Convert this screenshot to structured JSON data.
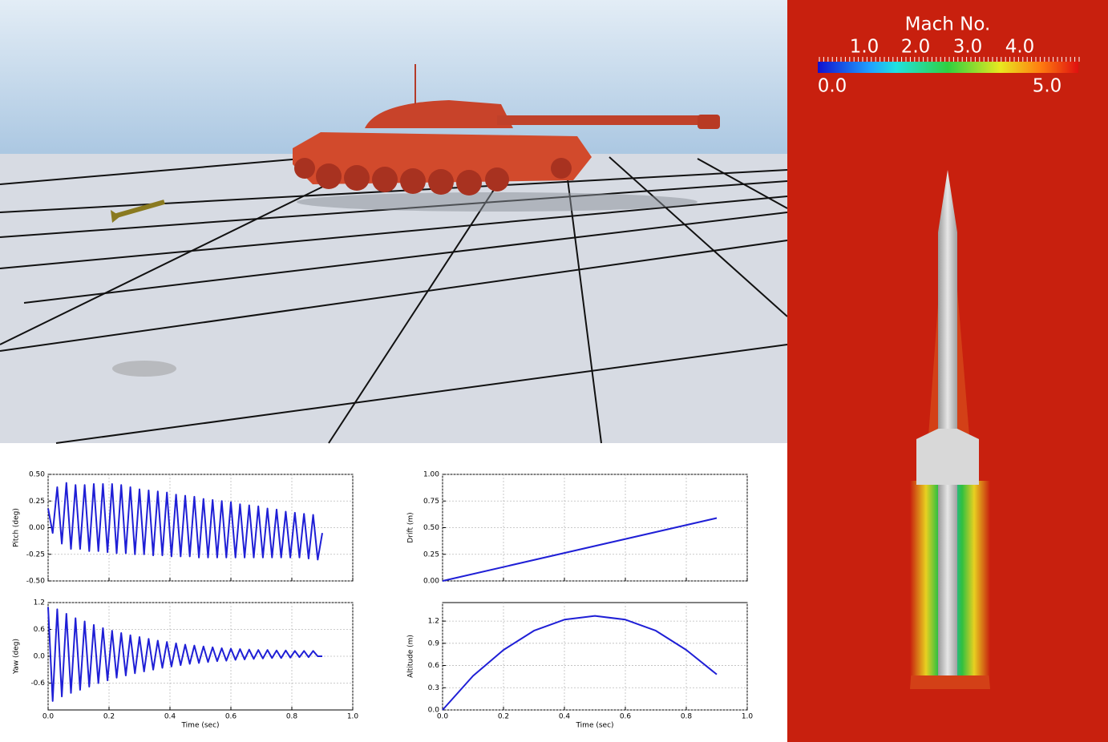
{
  "colorbar": {
    "title": "Mach No.",
    "upper_labels": [
      "1.0",
      "2.0",
      "3.0",
      "4.0"
    ],
    "lower_labels": [
      "0.0",
      "5.0"
    ]
  },
  "chart_data": [
    {
      "type": "line",
      "ylabel": "Pitch (deg)",
      "color": "#1f1fd6",
      "grid": true,
      "x": [
        0,
        0.015,
        0.03,
        0.045,
        0.06,
        0.075,
        0.09,
        0.105,
        0.12,
        0.135,
        0.15,
        0.165,
        0.18,
        0.195,
        0.21,
        0.225,
        0.24,
        0.255,
        0.27,
        0.285,
        0.3,
        0.315,
        0.33,
        0.345,
        0.36,
        0.375,
        0.39,
        0.405,
        0.42,
        0.435,
        0.45,
        0.465,
        0.48,
        0.495,
        0.51,
        0.525,
        0.54,
        0.555,
        0.57,
        0.585,
        0.6,
        0.615,
        0.63,
        0.645,
        0.66,
        0.675,
        0.69,
        0.705,
        0.72,
        0.735,
        0.75,
        0.765,
        0.78,
        0.795,
        0.81,
        0.825,
        0.84,
        0.855,
        0.87,
        0.885,
        0.9
      ],
      "values": [
        0.18,
        -0.05,
        0.38,
        -0.15,
        0.42,
        -0.2,
        0.4,
        -0.2,
        0.4,
        -0.22,
        0.41,
        -0.22,
        0.41,
        -0.23,
        0.41,
        -0.24,
        0.4,
        -0.24,
        0.38,
        -0.25,
        0.36,
        -0.25,
        0.35,
        -0.26,
        0.34,
        -0.26,
        0.33,
        -0.27,
        0.31,
        -0.27,
        0.3,
        -0.27,
        0.29,
        -0.28,
        0.27,
        -0.28,
        0.26,
        -0.28,
        0.25,
        -0.28,
        0.24,
        -0.28,
        0.22,
        -0.28,
        0.21,
        -0.28,
        0.2,
        -0.28,
        0.18,
        -0.28,
        0.17,
        -0.28,
        0.15,
        -0.28,
        0.14,
        -0.28,
        0.13,
        -0.29,
        0.12,
        -0.3,
        -0.05
      ],
      "xlim": [
        0,
        1
      ],
      "ylim": [
        -0.5,
        0.5
      ],
      "yticks": [
        {
          "value": -0.5,
          "label": "-0.50"
        },
        {
          "value": -0.25,
          "label": "-0.25"
        },
        {
          "value": 0,
          "label": "0.00"
        },
        {
          "value": 0.25,
          "label": "0.25"
        },
        {
          "value": 0.5,
          "label": "0.50"
        }
      ]
    },
    {
      "type": "line",
      "ylabel": "Yaw (deg)",
      "xlabel": "Time (sec)",
      "color": "#1f1fd6",
      "grid": true,
      "x": [
        0,
        0.015,
        0.03,
        0.045,
        0.06,
        0.075,
        0.09,
        0.105,
        0.12,
        0.135,
        0.15,
        0.165,
        0.18,
        0.195,
        0.21,
        0.225,
        0.24,
        0.255,
        0.27,
        0.285,
        0.3,
        0.315,
        0.33,
        0.345,
        0.36,
        0.375,
        0.39,
        0.405,
        0.42,
        0.435,
        0.45,
        0.465,
        0.48,
        0.495,
        0.51,
        0.525,
        0.54,
        0.555,
        0.57,
        0.585,
        0.6,
        0.615,
        0.63,
        0.645,
        0.66,
        0.675,
        0.69,
        0.705,
        0.72,
        0.735,
        0.75,
        0.765,
        0.78,
        0.795,
        0.81,
        0.825,
        0.84,
        0.855,
        0.87,
        0.885,
        0.9
      ],
      "values": [
        1.1,
        -1.0,
        1.05,
        -0.9,
        0.95,
        -0.82,
        0.85,
        -0.75,
        0.78,
        -0.68,
        0.7,
        -0.6,
        0.63,
        -0.54,
        0.57,
        -0.48,
        0.52,
        -0.43,
        0.47,
        -0.38,
        0.43,
        -0.34,
        0.39,
        -0.3,
        0.35,
        -0.26,
        0.32,
        -0.23,
        0.29,
        -0.2,
        0.26,
        -0.17,
        0.24,
        -0.15,
        0.22,
        -0.13,
        0.2,
        -0.11,
        0.18,
        -0.1,
        0.17,
        -0.08,
        0.16,
        -0.07,
        0.15,
        -0.06,
        0.14,
        -0.05,
        0.14,
        -0.04,
        0.13,
        -0.04,
        0.13,
        -0.03,
        0.12,
        -0.02,
        0.12,
        -0.02,
        0.12,
        0.0,
        0.0
      ],
      "xlim": [
        0,
        1
      ],
      "ylim": [
        -1.2,
        1.2
      ],
      "yticks": [
        {
          "value": -0.6,
          "label": "-0.6"
        },
        {
          "value": 0,
          "label": "0.0"
        },
        {
          "value": 0.6,
          "label": "0.6"
        },
        {
          "value": 1.2,
          "label": "1.2"
        }
      ],
      "xticks": [
        {
          "value": 0,
          "label": "0.0"
        },
        {
          "value": 0.2,
          "label": "0.2"
        },
        {
          "value": 0.4,
          "label": "0.4"
        },
        {
          "value": 0.6,
          "label": "0.6"
        },
        {
          "value": 0.8,
          "label": "0.8"
        },
        {
          "value": 1,
          "label": "1.0"
        }
      ]
    },
    {
      "type": "line",
      "ylabel": "Drift (m)",
      "color": "#1f1fd6",
      "grid": true,
      "x": [
        0,
        0.9
      ],
      "values": [
        0,
        0.59
      ],
      "xlim": [
        0,
        1
      ],
      "ylim": [
        0,
        1
      ],
      "yticks": [
        {
          "value": 0,
          "label": "0.00"
        },
        {
          "value": 0.25,
          "label": "0.25"
        },
        {
          "value": 0.5,
          "label": "0.50"
        },
        {
          "value": 0.75,
          "label": "0.75"
        },
        {
          "value": 1,
          "label": "1.00"
        }
      ]
    },
    {
      "type": "line",
      "ylabel": "Altitude (m)",
      "xlabel": "Time (sec)",
      "color": "#1f1fd6",
      "grid": true,
      "x": [
        0,
        0.1,
        0.2,
        0.3,
        0.4,
        0.5,
        0.6,
        0.7,
        0.8,
        0.9
      ],
      "values": [
        0,
        0.46,
        0.81,
        1.07,
        1.22,
        1.27,
        1.22,
        1.07,
        0.81,
        0.48
      ],
      "xlim": [
        0,
        1
      ],
      "ylim": [
        0,
        1.45
      ],
      "yticks": [
        {
          "value": 0,
          "label": "0.0"
        },
        {
          "value": 0.3,
          "label": "0.3"
        },
        {
          "value": 0.6,
          "label": "0.6"
        },
        {
          "value": 0.9,
          "label": "0.9"
        },
        {
          "value": 1.2,
          "label": "1.2"
        }
      ],
      "xticks": [
        {
          "value": 0,
          "label": "0.0"
        },
        {
          "value": 0.2,
          "label": "0.2"
        },
        {
          "value": 0.4,
          "label": "0.4"
        },
        {
          "value": 0.6,
          "label": "0.6"
        },
        {
          "value": 0.8,
          "label": "0.8"
        },
        {
          "value": 1,
          "label": "1.0"
        }
      ]
    }
  ]
}
